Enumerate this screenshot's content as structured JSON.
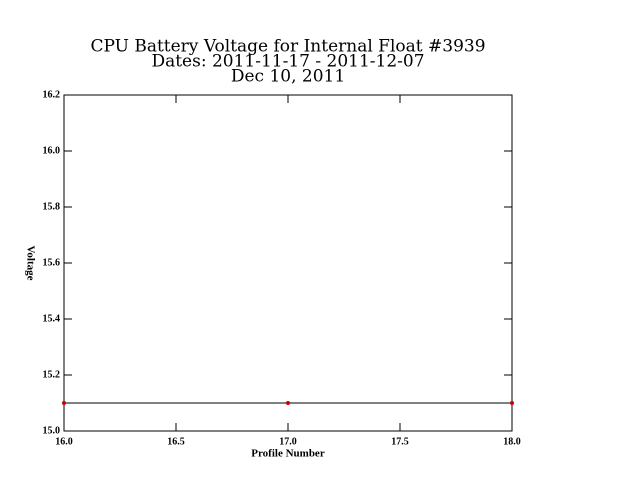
{
  "chart_data": {
    "type": "line",
    "title": [
      "CPU Battery Voltage for Internal Float #3939",
      "Dates:  2011-11-17 -  2011-12-07",
      "Dec 10, 2011"
    ],
    "x_label": "Profile Number",
    "y_label": "Voltage",
    "x": [
      16,
      17,
      18
    ],
    "series": [
      {
        "values": [
          15.1,
          15.1,
          15.1
        ],
        "color": "#000000",
        "marker_color": "#cc0000"
      }
    ],
    "xlim": [
      16,
      18
    ],
    "xticks": [
      {
        "value": 16,
        "label": "16.0"
      },
      16.5,
      {
        "value": 17,
        "label": "17.0"
      },
      17.5,
      {
        "value": 18,
        "label": "18.0"
      }
    ],
    "ylim": [
      15,
      16.2
    ],
    "yticks": [
      {
        "value": 15,
        "label": "15.0"
      },
      15.2,
      15.4,
      15.6,
      15.8,
      {
        "value": 16,
        "label": "16.0"
      },
      16.2
    ],
    "grid": false
  }
}
